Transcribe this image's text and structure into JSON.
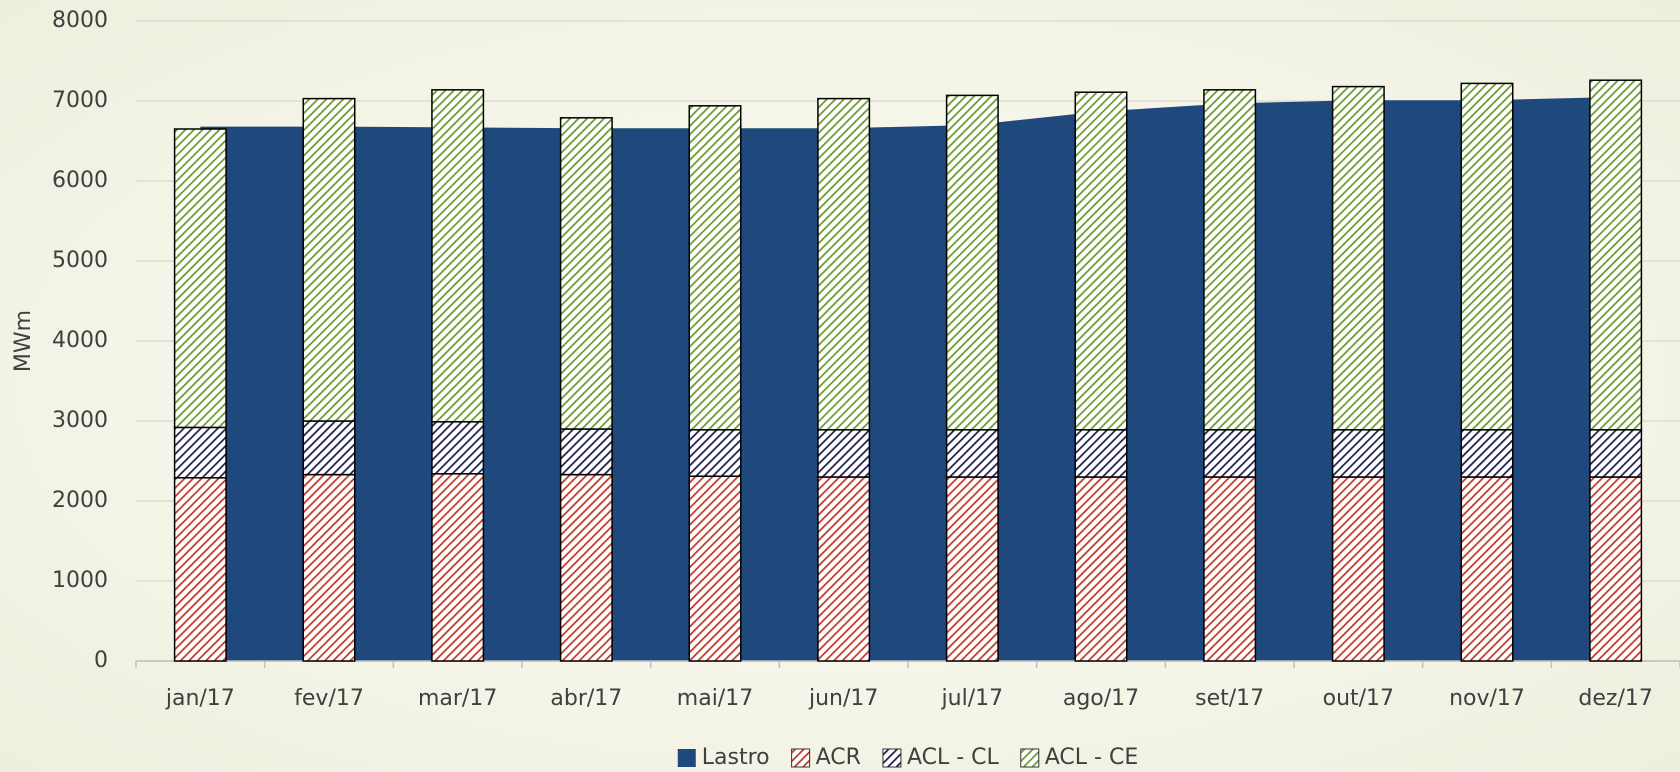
{
  "chart_data": {
    "type": "bar",
    "y_label": "MWm",
    "categories": [
      "jan/17",
      "fev/17",
      "mar/17",
      "abr/17",
      "mai/17",
      "jun/17",
      "jul/17",
      "ago/17",
      "set/17",
      "out/17",
      "nov/17",
      "dez/17"
    ],
    "series": [
      {
        "name": "Lastro",
        "type": "area",
        "color": "#1f497d",
        "values": [
          6680,
          6680,
          6670,
          6660,
          6660,
          6660,
          6700,
          6870,
          6970,
          7010,
          7010,
          7050
        ]
      },
      {
        "name": "ACR",
        "color": "#c0392b",
        "values": [
          2290,
          2330,
          2340,
          2330,
          2310,
          2300,
          2300,
          2300,
          2300,
          2300,
          2300,
          2300
        ]
      },
      {
        "name": "ACL - CL",
        "color": "#1f1f4f",
        "values": [
          630,
          670,
          650,
          570,
          580,
          590,
          590,
          590,
          590,
          590,
          590,
          590
        ]
      },
      {
        "name": "ACL - CE",
        "color": "#6b9a2f",
        "values": [
          3730,
          4030,
          4150,
          3890,
          4050,
          4140,
          4180,
          4220,
          4250,
          4290,
          4330,
          4370
        ]
      }
    ],
    "ylim": [
      0,
      8000
    ],
    "yticks": [
      0,
      1000,
      2000,
      3000,
      4000,
      5000,
      6000,
      7000,
      8000
    ],
    "grid": true,
    "legend": "bottom"
  }
}
